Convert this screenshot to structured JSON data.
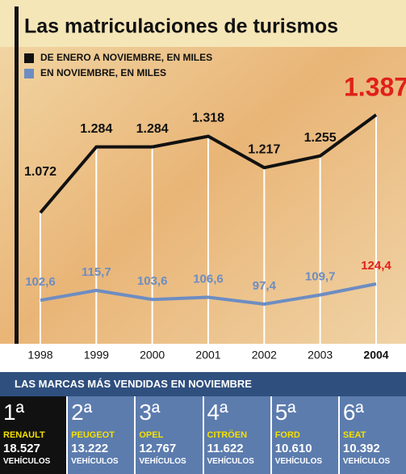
{
  "chart_data": {
    "type": "line",
    "title": "Las matriculaciones de turismos",
    "categories": [
      "1998",
      "1999",
      "2000",
      "2001",
      "2002",
      "2003",
      "2004"
    ],
    "series": [
      {
        "name": "DE ENERO A NOVIEMBRE, EN MILES",
        "color": "#111111",
        "values": [
          1072,
          1284,
          1284,
          1318,
          1217,
          1255,
          1387
        ],
        "value_labels": [
          "1.072",
          "1.284",
          "1.284",
          "1.318",
          "1.217",
          "1.255",
          "1.387"
        ]
      },
      {
        "name": "EN NOVIEMBRE, EN MILES",
        "color": "#6d8dc2",
        "values": [
          102.6,
          115.7,
          103.6,
          106.6,
          97.4,
          109.7,
          124.4
        ],
        "value_labels": [
          "102,6",
          "115,7",
          "103,6",
          "106,6",
          "97,4",
          "109,7",
          "124,4"
        ]
      }
    ]
  },
  "ranking": {
    "title": "LAS MARCAS MÁS VENDIDAS EN NOVIEMBRE",
    "brands": [
      {
        "rank": "1ª",
        "name": "RENAULT",
        "units": "18.527",
        "unit_label": "VEHÍCULOS"
      },
      {
        "rank": "2ª",
        "name": "PEUGEOT",
        "units": "13.222",
        "unit_label": "VEHÍCULOS"
      },
      {
        "rank": "3ª",
        "name": "OPEL",
        "units": "12.767",
        "unit_label": "VEHÍCULOS"
      },
      {
        "rank": "4ª",
        "name": "CITRÖEN",
        "units": "11.622",
        "unit_label": "VEHÍCULOS"
      },
      {
        "rank": "5ª",
        "name": "FORD",
        "units": "10.610",
        "unit_label": "VEHÍCULOS"
      },
      {
        "rank": "6ª",
        "name": "SEAT",
        "units": "10.392",
        "unit_label": "VEHÍCULOS"
      }
    ]
  }
}
